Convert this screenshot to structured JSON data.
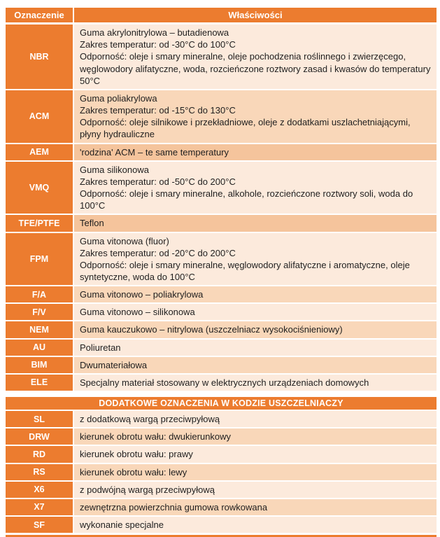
{
  "colors": {
    "orange": "#EC7C2F",
    "row_light": "#FCEADC",
    "row_mid": "#F9D7B9",
    "row_deep": "#F5C49C",
    "text": "#1F1F1F",
    "header_text": "#FFFFFF"
  },
  "table1": {
    "header_left": "Oznaczenie",
    "header_right": "Właściwości",
    "rows": [
      {
        "code": "NBR",
        "tone": "light",
        "text": "Guma akrylonitrylowa – butadienowa\nZakres temperatur: od -30°C do 100°C\nOdporność: oleje i smary mineralne, oleje pochodzenia roślinnego i zwierzęcego, węglowodory alifatyczne, woda, rozcieńczone roztwory zasad i kwasów do temperatury 50°C"
      },
      {
        "code": "ACM",
        "tone": "mid",
        "text": "Guma poliakrylowa\nZakres temperatur: od -15°C do 130°C\nOdporność: oleje silnikowe i przekładniowe, oleje z dodatkami uszlachetniającymi, płyny hydrauliczne"
      },
      {
        "code": "AEM",
        "tone": "deep",
        "text": "'rodzina' ACM – te same temperatury"
      },
      {
        "code": "VMQ",
        "tone": "light",
        "text": "Guma silikonowa\nZakres temperatur: od -50°C do 200°C\nOdporność: oleje i smary mineralne, alkohole, rozcieńczone roztwory soli, woda do 100°C"
      },
      {
        "code": "TFE/PTFE",
        "tone": "deep",
        "text": "Teflon"
      },
      {
        "code": "FPM",
        "tone": "light",
        "text": "Guma vitonowa (fluor)\nZakres temperatur: od -20°C do 200°C\nOdporność: oleje i smary mineralne, węglowodory alifatyczne i aromatyczne, oleje syntetyczne, woda do 100°C"
      },
      {
        "code": "F/A",
        "tone": "mid",
        "text": "Guma vitonowo – poliakrylowa"
      },
      {
        "code": "F/V",
        "tone": "light",
        "text": "Guma vitonowo – silikonowa"
      },
      {
        "code": "NEM",
        "tone": "mid",
        "text": "Guma kauczukowo – nitrylowa (uszczelniacz wysokociśnieniowy)"
      },
      {
        "code": "AU",
        "tone": "light",
        "text": "Poliuretan"
      },
      {
        "code": "BIM",
        "tone": "mid",
        "text": "Dwumateriałowa"
      },
      {
        "code": "ELE",
        "tone": "light",
        "text": "Specjalny materiał stosowany w elektrycznych urządzeniach domowych"
      }
    ]
  },
  "section2": {
    "title": "DODATKOWE OZNACZENIA W KODZIE USZCZELNIACZY",
    "rows": [
      {
        "code": "SL",
        "tone": "light",
        "text": "z dodatkową wargą przeciwpyłową"
      },
      {
        "code": "DRW",
        "tone": "mid",
        "text": "kierunek obrotu wału: dwukierunkowy"
      },
      {
        "code": "RD",
        "tone": "light",
        "text": "kierunek obrotu wału: prawy"
      },
      {
        "code": "RS",
        "tone": "mid",
        "text": "kierunek obrotu wału: lewy"
      },
      {
        "code": "X6",
        "tone": "light",
        "text": "z podwójną wargą przeciwpyłową"
      },
      {
        "code": "X7",
        "tone": "mid",
        "text": "zewnętrzna powierzchnia gumowa rowkowana"
      },
      {
        "code": "SF",
        "tone": "light",
        "text": "wykonanie specjalne"
      }
    ]
  }
}
